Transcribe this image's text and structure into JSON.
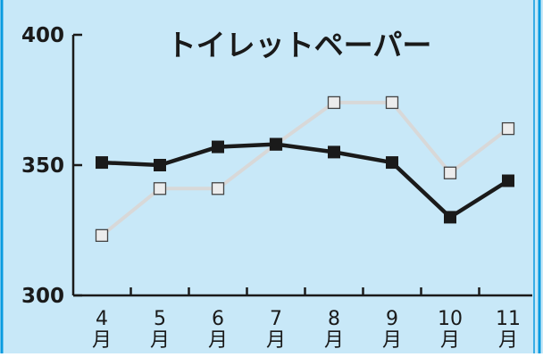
{
  "chart_data": {
    "type": "line",
    "title": "トイレットペーパー",
    "xlabel": "",
    "ylabel": "",
    "categories": [
      "4\n月",
      "5\n月",
      "6\n月",
      "7\n月",
      "8\n月",
      "9\n月",
      "10\n月",
      "11\n月"
    ],
    "ylim": [
      300,
      400
    ],
    "yticks": [
      "300",
      "350",
      "400"
    ],
    "grid": false,
    "series": [
      {
        "values": [
          351,
          350,
          357,
          358,
          355,
          351,
          330,
          344
        ],
        "color": "#1a1a1a",
        "marker": "filled-square"
      },
      {
        "values": [
          323,
          341,
          341,
          358,
          374,
          374,
          347,
          364
        ],
        "color": "#d8d8d8",
        "marker": "hollow-square"
      }
    ],
    "colors": {
      "background": "#c8e8f8",
      "border": "#0a9be0",
      "axis": "#1a1a1a"
    }
  }
}
